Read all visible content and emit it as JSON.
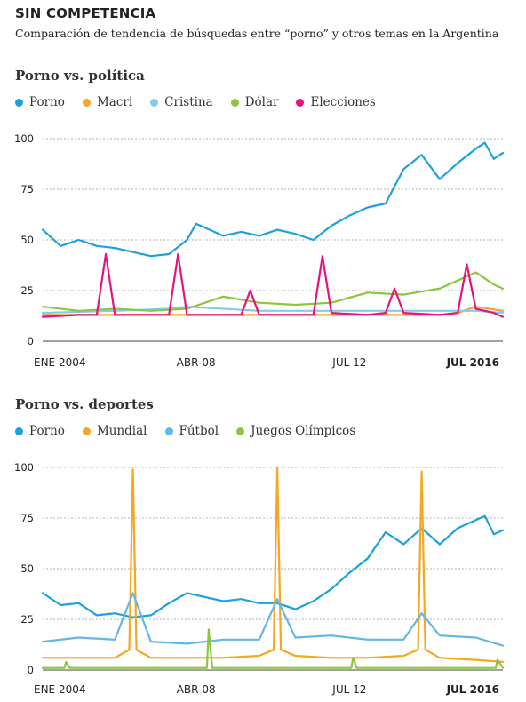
{
  "title": "SIN COMPETENCIA",
  "subtitle": "Comparación de tendencia de búsquedas entre “porno” y otros temas en la Argentina",
  "chart_data": [
    {
      "type": "line",
      "title": "Porno vs. política",
      "ylim": [
        0,
        100
      ],
      "yticks": [
        0,
        25,
        50,
        75,
        100
      ],
      "x_tick_labels": [
        "ENE 2004",
        "ABR 08",
        "JUL 12",
        "JUL 2016"
      ],
      "x_tick_dates": [
        2004.0,
        2008.25,
        2012.5,
        2016.5
      ],
      "xlim": [
        2004.0,
        2016.75
      ],
      "grid": "horizontal dashed",
      "legend_position": "top-left",
      "series": [
        {
          "name": "Porno",
          "color": "#1ba1dd",
          "x": [
            2004.0,
            2004.5,
            2005.0,
            2005.5,
            2006.0,
            2006.5,
            2007.0,
            2007.5,
            2008.0,
            2008.25,
            2008.5,
            2009.0,
            2009.5,
            2010.0,
            2010.5,
            2011.0,
            2011.5,
            2012.0,
            2012.5,
            2013.0,
            2013.5,
            2014.0,
            2014.5,
            2015.0,
            2015.5,
            2016.0,
            2016.25,
            2016.5,
            2016.75
          ],
          "values": [
            55,
            47,
            50,
            47,
            46,
            44,
            42,
            43,
            50,
            58,
            56,
            52,
            54,
            52,
            55,
            53,
            50,
            57,
            62,
            66,
            68,
            85,
            92,
            80,
            88,
            95,
            98,
            90,
            93
          ]
        },
        {
          "name": "Macri",
          "color": "#f5a623",
          "x": [
            2004.0,
            2006.0,
            2008.0,
            2010.0,
            2012.0,
            2014.0,
            2015.0,
            2015.5,
            2016.0,
            2016.75
          ],
          "values": [
            13,
            13,
            13,
            13,
            13,
            13,
            13,
            14,
            17,
            15
          ]
        },
        {
          "name": "Cristina",
          "color": "#7dcdf0",
          "x": [
            2004.0,
            2006.0,
            2007.5,
            2008.0,
            2010.0,
            2012.0,
            2014.0,
            2016.0,
            2016.75
          ],
          "values": [
            14,
            15,
            16,
            17,
            15,
            15,
            15,
            15,
            14
          ]
        },
        {
          "name": "Dólar",
          "color": "#8cc63f",
          "x": [
            2004.0,
            2005.0,
            2006.0,
            2007.0,
            2008.0,
            2009.0,
            2010.0,
            2011.0,
            2012.0,
            2013.0,
            2014.0,
            2015.0,
            2015.5,
            2016.0,
            2016.5,
            2016.75
          ],
          "values": [
            17,
            15,
            16,
            15,
            16,
            22,
            19,
            18,
            19,
            24,
            23,
            26,
            30,
            34,
            28,
            26
          ]
        },
        {
          "name": "Elecciones",
          "color": "#e6127e",
          "x": [
            2004.0,
            2005.0,
            2005.5,
            2005.75,
            2006.0,
            2007.0,
            2007.5,
            2007.75,
            2008.0,
            2009.0,
            2009.5,
            2009.75,
            2010.0,
            2011.0,
            2011.5,
            2011.75,
            2012.0,
            2013.0,
            2013.5,
            2013.75,
            2014.0,
            2015.0,
            2015.5,
            2015.75,
            2016.0,
            2016.5,
            2016.75
          ],
          "values": [
            12,
            13,
            13,
            43,
            13,
            13,
            13,
            43,
            13,
            13,
            13,
            25,
            13,
            13,
            13,
            42,
            14,
            13,
            14,
            26,
            14,
            13,
            14,
            38,
            16,
            14,
            12
          ]
        }
      ]
    },
    {
      "type": "line",
      "title": "Porno vs. deportes",
      "ylim": [
        0,
        100
      ],
      "yticks": [
        0,
        25,
        50,
        75,
        100
      ],
      "x_tick_labels": [
        "ENE 2004",
        "ABR 08",
        "JUL 12",
        "JUL 2016"
      ],
      "x_tick_dates": [
        2004.0,
        2008.25,
        2012.5,
        2016.5
      ],
      "xlim": [
        2004.0,
        2016.75
      ],
      "grid": "horizontal dashed",
      "legend_position": "top-left",
      "series": [
        {
          "name": "Porno",
          "color": "#1ba1dd",
          "x": [
            2004.0,
            2004.5,
            2005.0,
            2005.5,
            2006.0,
            2006.5,
            2007.0,
            2007.5,
            2008.0,
            2008.5,
            2009.0,
            2009.5,
            2010.0,
            2010.5,
            2011.0,
            2011.5,
            2012.0,
            2012.5,
            2013.0,
            2013.5,
            2014.0,
            2014.5,
            2015.0,
            2015.5,
            2016.0,
            2016.25,
            2016.5,
            2016.75
          ],
          "values": [
            38,
            32,
            33,
            27,
            28,
            26,
            27,
            33,
            38,
            36,
            34,
            35,
            33,
            33,
            30,
            34,
            40,
            48,
            55,
            68,
            62,
            70,
            62,
            70,
            74,
            76,
            67,
            69
          ]
        },
        {
          "name": "Mundial",
          "color": "#f5a623",
          "x": [
            2004.0,
            2005.0,
            2006.0,
            2006.4,
            2006.5,
            2006.6,
            2007.0,
            2008.0,
            2009.0,
            2010.0,
            2010.4,
            2010.5,
            2010.6,
            2011.0,
            2012.0,
            2013.0,
            2014.0,
            2014.4,
            2014.5,
            2014.6,
            2015.0,
            2016.0,
            2016.75
          ],
          "values": [
            6,
            6,
            6,
            10,
            99,
            10,
            6,
            6,
            6,
            7,
            10,
            100,
            10,
            7,
            6,
            6,
            7,
            10,
            98,
            10,
            6,
            5,
            4
          ]
        },
        {
          "name": "Fútbol",
          "color": "#62b6e8",
          "x": [
            2004.0,
            2005.0,
            2006.0,
            2006.5,
            2007.0,
            2008.0,
            2009.0,
            2010.0,
            2010.5,
            2011.0,
            2012.0,
            2013.0,
            2014.0,
            2014.5,
            2015.0,
            2016.0,
            2016.75
          ],
          "values": [
            14,
            16,
            15,
            38,
            14,
            13,
            15,
            15,
            35,
            16,
            17,
            15,
            15,
            28,
            17,
            16,
            12
          ]
        },
        {
          "name": "Juegos Olímpicos",
          "color": "#8cc63f",
          "x": [
            2004.0,
            2004.6,
            2004.65,
            2004.75,
            2008.0,
            2008.55,
            2008.6,
            2008.7,
            2012.0,
            2012.55,
            2012.6,
            2012.7,
            2016.0,
            2016.55,
            2016.6,
            2016.75
          ],
          "values": [
            1,
            1,
            4,
            1,
            1,
            1,
            20,
            1,
            1,
            1,
            6,
            1,
            1,
            1,
            5,
            1
          ]
        }
      ]
    }
  ]
}
